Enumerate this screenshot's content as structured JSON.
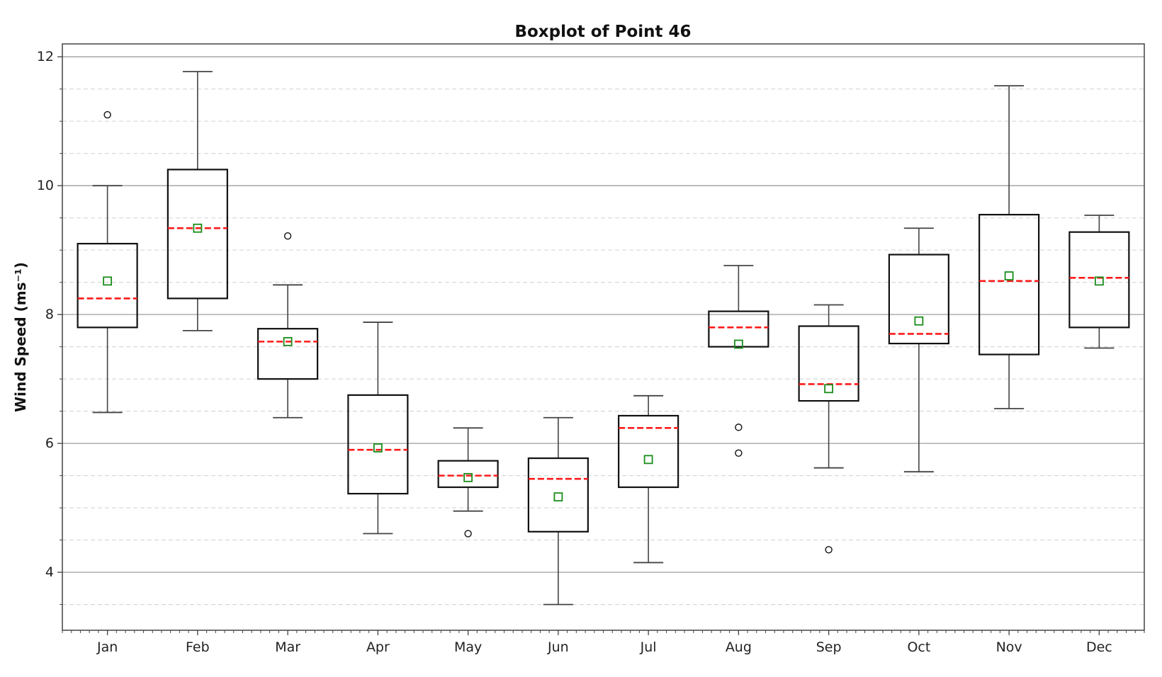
{
  "chart_data": {
    "type": "boxplot",
    "title": "Boxplot of Point 46",
    "xlabel": "",
    "ylabel": "Wind Speed (ms⁻¹)",
    "ylim": [
      3.1,
      12.2
    ],
    "yticks": [
      4,
      6,
      8,
      10,
      12
    ],
    "grid": {
      "major": true,
      "minor_dashed": true
    },
    "categories": [
      "Jan",
      "Feb",
      "Mar",
      "Apr",
      "May",
      "Jun",
      "Jul",
      "Aug",
      "Sep",
      "Oct",
      "Nov",
      "Dec"
    ],
    "boxes": [
      {
        "label": "Jan",
        "whislo": 6.48,
        "q1": 7.8,
        "med": 8.25,
        "q3": 9.1,
        "whishi": 10.0,
        "mean": 8.52,
        "fliers": [
          11.1
        ]
      },
      {
        "label": "Feb",
        "whislo": 7.75,
        "q1": 8.25,
        "med": 9.34,
        "q3": 10.25,
        "whishi": 11.77,
        "mean": 9.34,
        "fliers": []
      },
      {
        "label": "Mar",
        "whislo": 6.4,
        "q1": 7.0,
        "med": 7.58,
        "q3": 7.78,
        "whishi": 8.46,
        "mean": 7.58,
        "fliers": [
          9.22
        ]
      },
      {
        "label": "Apr",
        "whislo": 4.6,
        "q1": 5.22,
        "med": 5.9,
        "q3": 6.75,
        "whishi": 7.88,
        "mean": 5.93,
        "fliers": []
      },
      {
        "label": "May",
        "whislo": 4.95,
        "q1": 5.32,
        "med": 5.5,
        "q3": 5.73,
        "whishi": 6.24,
        "mean": 5.47,
        "fliers": [
          4.6
        ]
      },
      {
        "label": "Jun",
        "whislo": 3.5,
        "q1": 4.63,
        "med": 5.45,
        "q3": 5.77,
        "whishi": 6.4,
        "mean": 5.17,
        "fliers": []
      },
      {
        "label": "Jul",
        "whislo": 4.15,
        "q1": 5.32,
        "med": 6.24,
        "q3": 6.43,
        "whishi": 6.74,
        "mean": 5.75,
        "fliers": []
      },
      {
        "label": "Aug",
        "whislo": 7.5,
        "q1": 7.5,
        "med": 7.8,
        "q3": 8.05,
        "whishi": 8.76,
        "mean": 7.54,
        "fliers": [
          6.25,
          5.85
        ]
      },
      {
        "label": "Sep",
        "whislo": 5.62,
        "q1": 6.66,
        "med": 6.92,
        "q3": 7.82,
        "whishi": 8.15,
        "mean": 6.85,
        "fliers": [
          4.35
        ]
      },
      {
        "label": "Oct",
        "whislo": 5.56,
        "q1": 7.55,
        "med": 7.7,
        "q3": 8.93,
        "whishi": 9.34,
        "mean": 7.9,
        "fliers": []
      },
      {
        "label": "Nov",
        "whislo": 6.54,
        "q1": 7.38,
        "med": 8.52,
        "q3": 9.55,
        "whishi": 11.55,
        "mean": 8.6,
        "fliers": []
      },
      {
        "label": "Dec",
        "whislo": 7.48,
        "q1": 7.8,
        "med": 8.57,
        "q3": 9.28,
        "whishi": 9.54,
        "mean": 8.52,
        "fliers": []
      }
    ],
    "colors": {
      "box": "#111111",
      "whisker": "#444444",
      "median": "#ff1a1a",
      "mean_marker": "#1a8c1a",
      "grid_major": "#9e9e9e",
      "grid_minor": "#d8d8d8",
      "axis": "#444444"
    }
  }
}
